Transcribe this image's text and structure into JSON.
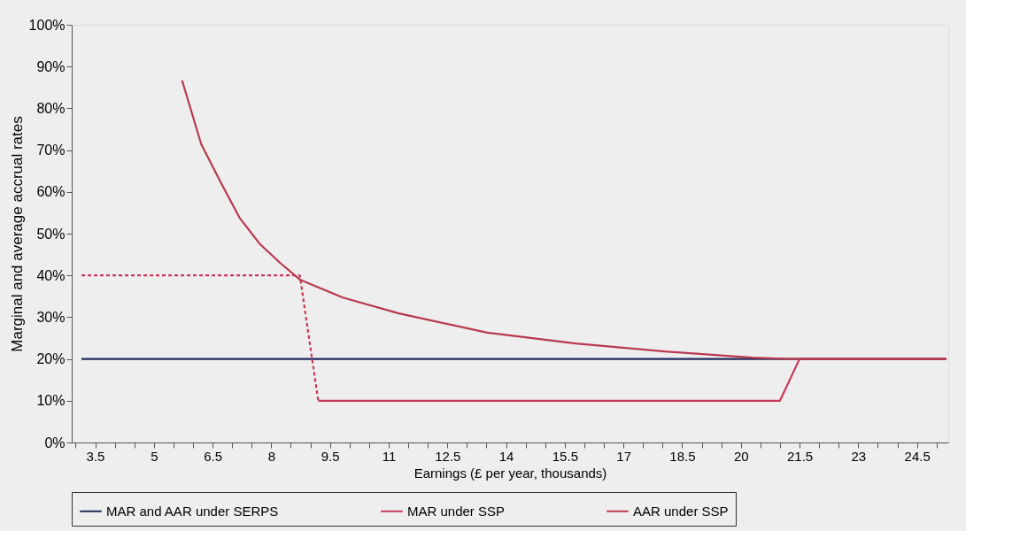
{
  "chart_data": {
    "type": "line",
    "xlabel": "Earnings (£ per year, thousands)",
    "ylabel": "Marginal and average accrual rates",
    "xlim": [
      2.9,
      25.3
    ],
    "xticks": [
      {
        "value": 3,
        "label": null
      },
      {
        "value": 3.5,
        "label": "3.5"
      },
      {
        "value": 4,
        "label": null
      },
      {
        "value": 4.5,
        "label": null
      },
      {
        "value": 5,
        "label": "5"
      },
      {
        "value": 5.5,
        "label": null
      },
      {
        "value": 6,
        "label": null
      },
      {
        "value": 6.5,
        "label": "6.5"
      },
      {
        "value": 7,
        "label": null
      },
      {
        "value": 7.5,
        "label": null
      },
      {
        "value": 8,
        "label": "8"
      },
      {
        "value": 8.5,
        "label": null
      },
      {
        "value": 9,
        "label": null
      },
      {
        "value": 9.5,
        "label": "9.5"
      },
      {
        "value": 10,
        "label": null
      },
      {
        "value": 10.5,
        "label": null
      },
      {
        "value": 11,
        "label": "11"
      },
      {
        "value": 11.5,
        "label": null
      },
      {
        "value": 12,
        "label": null
      },
      {
        "value": 12.5,
        "label": "12.5"
      },
      {
        "value": 13,
        "label": null
      },
      {
        "value": 13.5,
        "label": null
      },
      {
        "value": 14,
        "label": "14"
      },
      {
        "value": 14.5,
        "label": null
      },
      {
        "value": 15,
        "label": null
      },
      {
        "value": 15.5,
        "label": "15.5"
      },
      {
        "value": 16,
        "label": null
      },
      {
        "value": 16.5,
        "label": null
      },
      {
        "value": 17,
        "label": "17"
      },
      {
        "value": 17.5,
        "label": null
      },
      {
        "value": 18,
        "label": null
      },
      {
        "value": 18.5,
        "label": "18.5"
      },
      {
        "value": 19,
        "label": null
      },
      {
        "value": 19.5,
        "label": null
      },
      {
        "value": 20,
        "label": "20"
      },
      {
        "value": 20.5,
        "label": null
      },
      {
        "value": 21,
        "label": null
      },
      {
        "value": 21.5,
        "label": "21.5"
      },
      {
        "value": 22,
        "label": null
      },
      {
        "value": 22.5,
        "label": null
      },
      {
        "value": 23,
        "label": "23"
      },
      {
        "value": 23.5,
        "label": null
      },
      {
        "value": 24,
        "label": null
      },
      {
        "value": 24.5,
        "label": "24.5"
      },
      {
        "value": 25,
        "label": null
      }
    ],
    "ylim": [
      0,
      100
    ],
    "yticks": [
      {
        "value": 0,
        "label": "0%"
      },
      {
        "value": 10,
        "label": "10%"
      },
      {
        "value": 20,
        "label": "20%"
      },
      {
        "value": 30,
        "label": "30%"
      },
      {
        "value": 40,
        "label": "40%"
      },
      {
        "value": 50,
        "label": "50%"
      },
      {
        "value": 60,
        "label": "60%"
      },
      {
        "value": 70,
        "label": "70%"
      },
      {
        "value": 80,
        "label": "80%"
      },
      {
        "value": 90,
        "label": "90%"
      },
      {
        "value": 100,
        "label": "100%"
      }
    ],
    "grid": false,
    "legend": "bottom",
    "marker": "none",
    "series": [
      {
        "name": "MAR and AAR under SERPS",
        "color": "#1f2a5c",
        "line_style": "solid",
        "x": [
          3.15,
          25.25
        ],
        "values": [
          20,
          20
        ]
      },
      {
        "name": "MAR under SSP",
        "color": "#c8385a",
        "line_style": "solid",
        "x": [
          9.2,
          21.0,
          21.5,
          25.25
        ],
        "values": [
          10,
          10,
          20,
          20
        ]
      },
      {
        "name": "AAR under SSP",
        "color": "#b83a4e",
        "line_style": "solid",
        "x": [
          5.72,
          6.21,
          6.74,
          7.19,
          7.71,
          8.25,
          8.73,
          9.83,
          11.26,
          13.52,
          15.78,
          18.05,
          20.3,
          21.2,
          25.25
        ],
        "values": [
          86.7,
          71.4,
          61.7,
          53.8,
          47.5,
          42.8,
          39.0,
          34.7,
          30.9,
          26.3,
          23.7,
          21.8,
          20.3,
          20,
          20
        ]
      },
      {
        "color": "#c8385a",
        "line_style": "dashed",
        "x": [
          3.15,
          8.73,
          9.2
        ],
        "values": [
          40,
          40,
          10
        ]
      }
    ]
  }
}
